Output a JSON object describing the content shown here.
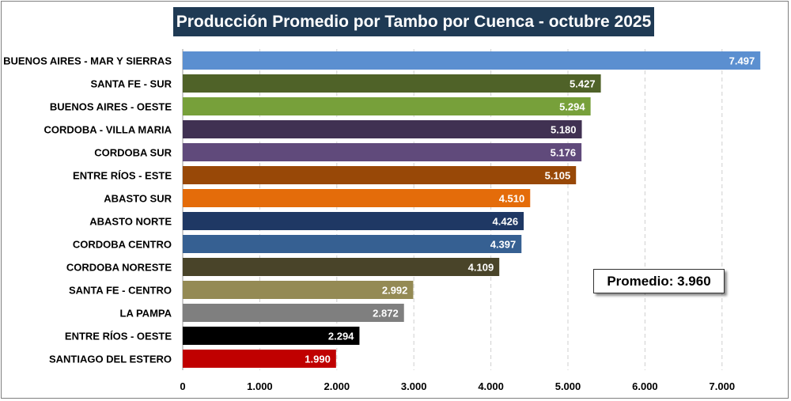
{
  "chart_data": {
    "type": "bar",
    "orientation": "horizontal",
    "title": "Producción Promedio por Tambo por Cuenca - octubre 2025",
    "categories": [
      "BUENOS AIRES - MAR Y SIERRAS",
      "SANTA FE - SUR",
      "BUENOS AIRES - OESTE",
      "CORDOBA - VILLA MARIA",
      "CORDOBA SUR",
      "ENTRE RÍOS - ESTE",
      "ABASTO SUR",
      "ABASTO NORTE",
      "CORDOBA CENTRO",
      "CORDOBA NORESTE",
      "SANTA FE - CENTRO",
      "LA PAMPA",
      "ENTRE RÍOS - OESTE",
      "SANTIAGO DEL ESTERO"
    ],
    "values": [
      7497,
      5427,
      5294,
      5180,
      5176,
      5105,
      4510,
      4426,
      4397,
      4109,
      2992,
      2872,
      2294,
      1990
    ],
    "value_labels": [
      "7.497",
      "5.427",
      "5.294",
      "5.180",
      "5.176",
      "5.105",
      "4.510",
      "4.426",
      "4.397",
      "4.109",
      "2.992",
      "2.872",
      "2.294",
      "1.990"
    ],
    "colors": [
      "#5b8fd0",
      "#4f6228",
      "#77a03a",
      "#403152",
      "#604a7b",
      "#984807",
      "#e46c0a",
      "#1f3864",
      "#366092",
      "#494429",
      "#948a54",
      "#7f7f7f",
      "#000000",
      "#c00000"
    ],
    "xticks": [
      0,
      1000,
      2000,
      3000,
      4000,
      5000,
      6000,
      7000
    ],
    "xtick_labels": [
      "0",
      "1.000",
      "2.000",
      "3.000",
      "4.000",
      "5.000",
      "6.000",
      "7.000"
    ],
    "xlim": [
      0,
      7497
    ],
    "grid": true,
    "annotation": "Promedio: 3.960",
    "average": 3960
  }
}
